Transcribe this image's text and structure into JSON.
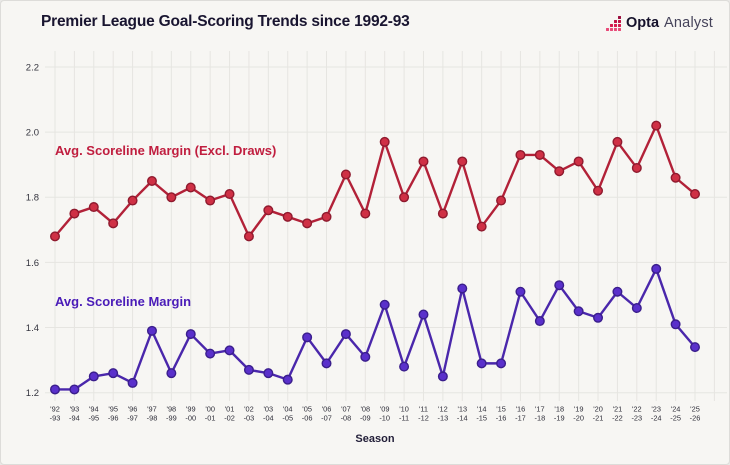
{
  "header": {
    "brand": {
      "bold": "Opta",
      "light": "Analyst",
      "mark_colors": [
        "#9c0e3e",
        "#bf1244",
        "#d41a4e",
        "#e84a78"
      ]
    }
  },
  "chart_data": {
    "type": "line",
    "title": "Premier League Goal-Scoring Trends since 1992-93",
    "xlabel": "Season",
    "ylabel": "",
    "ylim": [
      1.2,
      2.2
    ],
    "yticks": [
      "1.2",
      "1.4",
      "1.6",
      "1.8",
      "2.0",
      "2.2"
    ],
    "grid": true,
    "legend_position": "inside-left",
    "background": "#f7f6f3",
    "grid_color": "#e6e5e1",
    "tick_color": "#35353f",
    "x_tick_top": [
      "'92",
      "'93",
      "'94",
      "'95",
      "'96",
      "'97",
      "'98",
      "'99",
      "'00",
      "'01",
      "'02",
      "'03",
      "'04",
      "'05",
      "'06",
      "'07",
      "'08",
      "'09",
      "'10",
      "'11",
      "'12",
      "'13",
      "'14",
      "'15",
      "'16",
      "'17",
      "'18",
      "'19",
      "'20",
      "'21",
      "'22",
      "'23",
      "'24",
      "'25"
    ],
    "x_tick_bottom": [
      "-93",
      "-94",
      "-95",
      "-96",
      "-97",
      "-98",
      "-99",
      "-00",
      "-01",
      "-02",
      "-03",
      "-04",
      "-05",
      "-06",
      "-07",
      "-08",
      "-09",
      "-10",
      "-11",
      "-12",
      "-13",
      "-14",
      "-15",
      "-16",
      "-17",
      "-18",
      "-19",
      "-20",
      "-21",
      "-22",
      "-23",
      "-24",
      "-25",
      "-26"
    ],
    "series": [
      {
        "name": "Avg. Scoreline Margin (Excl. Draws)",
        "line_color": "#b22138",
        "point_color": "#cf3045",
        "point_border": "#8f1a2e",
        "label_color": "#c01e3f",
        "values": [
          1.68,
          1.75,
          1.77,
          1.72,
          1.79,
          1.85,
          1.8,
          1.83,
          1.79,
          1.81,
          1.68,
          1.76,
          1.74,
          1.72,
          1.74,
          1.87,
          1.75,
          1.97,
          1.8,
          1.91,
          1.75,
          1.91,
          1.71,
          1.79,
          1.93,
          1.93,
          1.88,
          1.91,
          1.82,
          1.97,
          1.89,
          2.02,
          1.86,
          1.81
        ]
      },
      {
        "name": "Avg. Scoreline Margin",
        "line_color": "#4a27ab",
        "point_color": "#5a30cb",
        "point_border": "#3a1e8c",
        "label_color": "#4a1cb8",
        "values": [
          1.21,
          1.21,
          1.25,
          1.26,
          1.23,
          1.39,
          1.26,
          1.38,
          1.32,
          1.33,
          1.27,
          1.26,
          1.24,
          1.37,
          1.29,
          1.38,
          1.31,
          1.47,
          1.28,
          1.44,
          1.25,
          1.52,
          1.29,
          1.29,
          1.51,
          1.42,
          1.53,
          1.45,
          1.43,
          1.51,
          1.46,
          1.58,
          1.41,
          1.34
        ]
      }
    ]
  }
}
